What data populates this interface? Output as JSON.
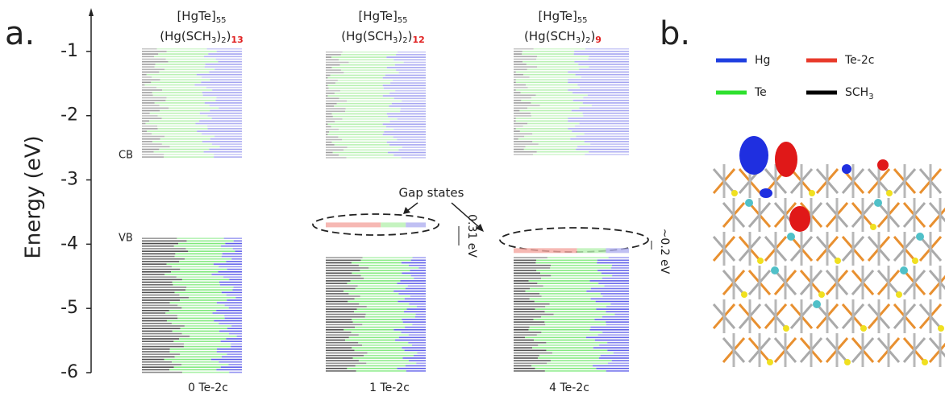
{
  "chart_data": {
    "type": "levels",
    "panel_labels": [
      "a.",
      "b."
    ],
    "ylabel": "Energy (eV)",
    "ylim": [
      -6,
      -0.4
    ],
    "yticks": [
      -1,
      -2,
      -3,
      -4,
      -5,
      -6
    ],
    "band_labels": {
      "cb": "CB",
      "vb": "VB"
    },
    "panels": [
      {
        "formula": "[HgTe]",
        "formula_sub": "55",
        "ligand_a": "(Hg(SCH",
        "ligand_sub1": "3",
        "ligand_b": ")",
        "ligand_sub2": "2",
        "ligand_c": ")",
        "ligand_count": "13",
        "xlabel": "0 Te-2c",
        "conduction_band": [
          -2.65,
          -0.95
        ],
        "valence_band": [
          -6,
          -3.9
        ],
        "gap_state": null
      },
      {
        "formula": "[HgTe]",
        "formula_sub": "55",
        "ligand_a": "(Hg(SCH",
        "ligand_sub1": "3",
        "ligand_b": ")",
        "ligand_sub2": "2",
        "ligand_c": ")",
        "ligand_count": "12",
        "xlabel": "1 Te-2c",
        "conduction_band": [
          -2.65,
          -1
        ],
        "valence_band": [
          -6,
          -4.2
        ],
        "gap_state": -3.7
      },
      {
        "formula": "[HgTe]",
        "formula_sub": "55",
        "ligand_a": "(Hg(SCH",
        "ligand_sub1": "3",
        "ligand_b": ")",
        "ligand_sub2": "2",
        "ligand_c": ")",
        "ligand_count": "9",
        "xlabel": "4 Te-2c",
        "conduction_band": [
          -2.6,
          -0.95
        ],
        "valence_band": [
          -6,
          -4.2
        ],
        "gap_state": -4.1
      }
    ],
    "annotation": "Gap states",
    "gap_labels": [
      "0.31 eV",
      "~0.2 eV"
    ],
    "legend": [
      {
        "name": "Hg",
        "color": "#1f3fe0"
      },
      {
        "name": "Te-2c",
        "color": "#e83a2a"
      },
      {
        "name": "Te",
        "color": "#2ee02e"
      },
      {
        "name": "SCH",
        "sub": "3",
        "color": "#000000"
      }
    ]
  }
}
